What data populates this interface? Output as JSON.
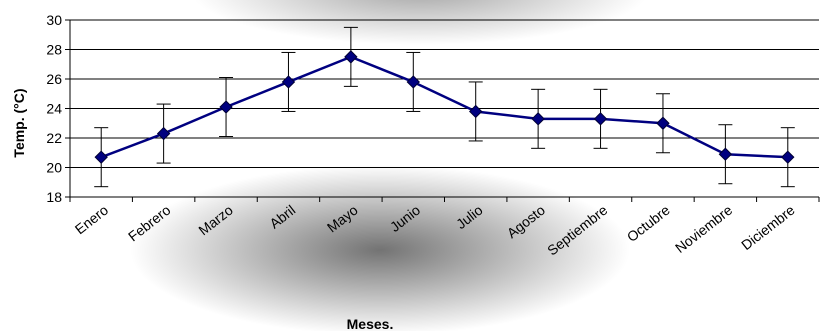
{
  "chart_data": {
    "type": "line",
    "title": "",
    "xlabel": "Meses.",
    "ylabel": "Temp. (°C)",
    "categories": [
      "Enero",
      "Febrero",
      "Marzo",
      "Abril",
      "Mayo",
      "Junio",
      "Julio",
      "Agosto",
      "Septiembre",
      "Octubre",
      "Noviembre",
      "Diciembre"
    ],
    "series": [
      {
        "values": [
          20.7,
          22.3,
          24.1,
          25.8,
          27.5,
          25.8,
          23.8,
          23.3,
          23.3,
          23.0,
          20.9,
          20.7
        ],
        "error": [
          2.0,
          2.0,
          2.0,
          2.0,
          2.0,
          2.0,
          2.0,
          2.0,
          2.0,
          2.0,
          2.0,
          2.0
        ],
        "color": "#000080"
      }
    ],
    "ylim": [
      18,
      30
    ],
    "yticks": [
      18,
      20,
      22,
      24,
      26,
      28,
      30
    ],
    "grid": true,
    "legend": "none"
  }
}
